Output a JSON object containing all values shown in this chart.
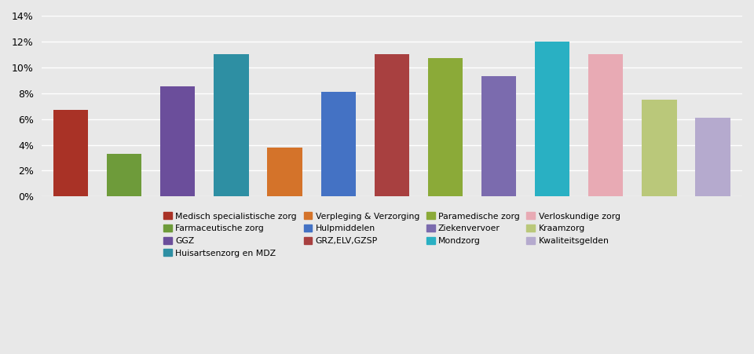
{
  "categories": [
    "Medisch specialistische zorg",
    "Farmaceutische zorg",
    "GGZ",
    "Huisartsenzorg en MDZ",
    "Verpleging & Verzorging",
    "Hulpmiddelen",
    "GRZ,ELV,GZSP",
    "Paramedische zorg",
    "Ziekenvervoer",
    "Mondzorg",
    "Verloskundige zorg",
    "Kraamzorg",
    "Kwaliteitsgelden"
  ],
  "values": [
    0.067,
    0.033,
    0.085,
    0.11,
    0.038,
    0.081,
    0.11,
    0.107,
    0.093,
    0.12,
    0.11,
    0.075,
    0.061
  ],
  "colors": [
    "#A93226",
    "#6E9B3A",
    "#6B4E9B",
    "#2E8FA3",
    "#D4732A",
    "#4472C4",
    "#A84040",
    "#8BAA38",
    "#7B6BAE",
    "#29B0C3",
    "#E8AAB4",
    "#BAC87A",
    "#B5AACE"
  ],
  "ylim": [
    0,
    0.14
  ],
  "yticks": [
    0,
    0.02,
    0.04,
    0.06,
    0.08,
    0.1,
    0.12,
    0.14
  ],
  "ytick_labels": [
    "0%",
    "2%",
    "4%",
    "6%",
    "8%",
    "10%",
    "12%",
    "14%"
  ],
  "background_color": "#E8E8E8",
  "bar_width": 0.65,
  "legend_order": [
    "Medisch specialistische zorg",
    "Farmaceutische zorg",
    "GGZ",
    "Huisartsenzorg en MDZ",
    "Verpleging & Verzorging",
    "Hulpmiddelen",
    "GRZ,ELV,GZSP",
    "Paramedische zorg",
    "Ziekenvervoer",
    "Mondzorg",
    "Verloskundige zorg",
    "Kraamzorg",
    "Kwaliteitsgelden"
  ]
}
